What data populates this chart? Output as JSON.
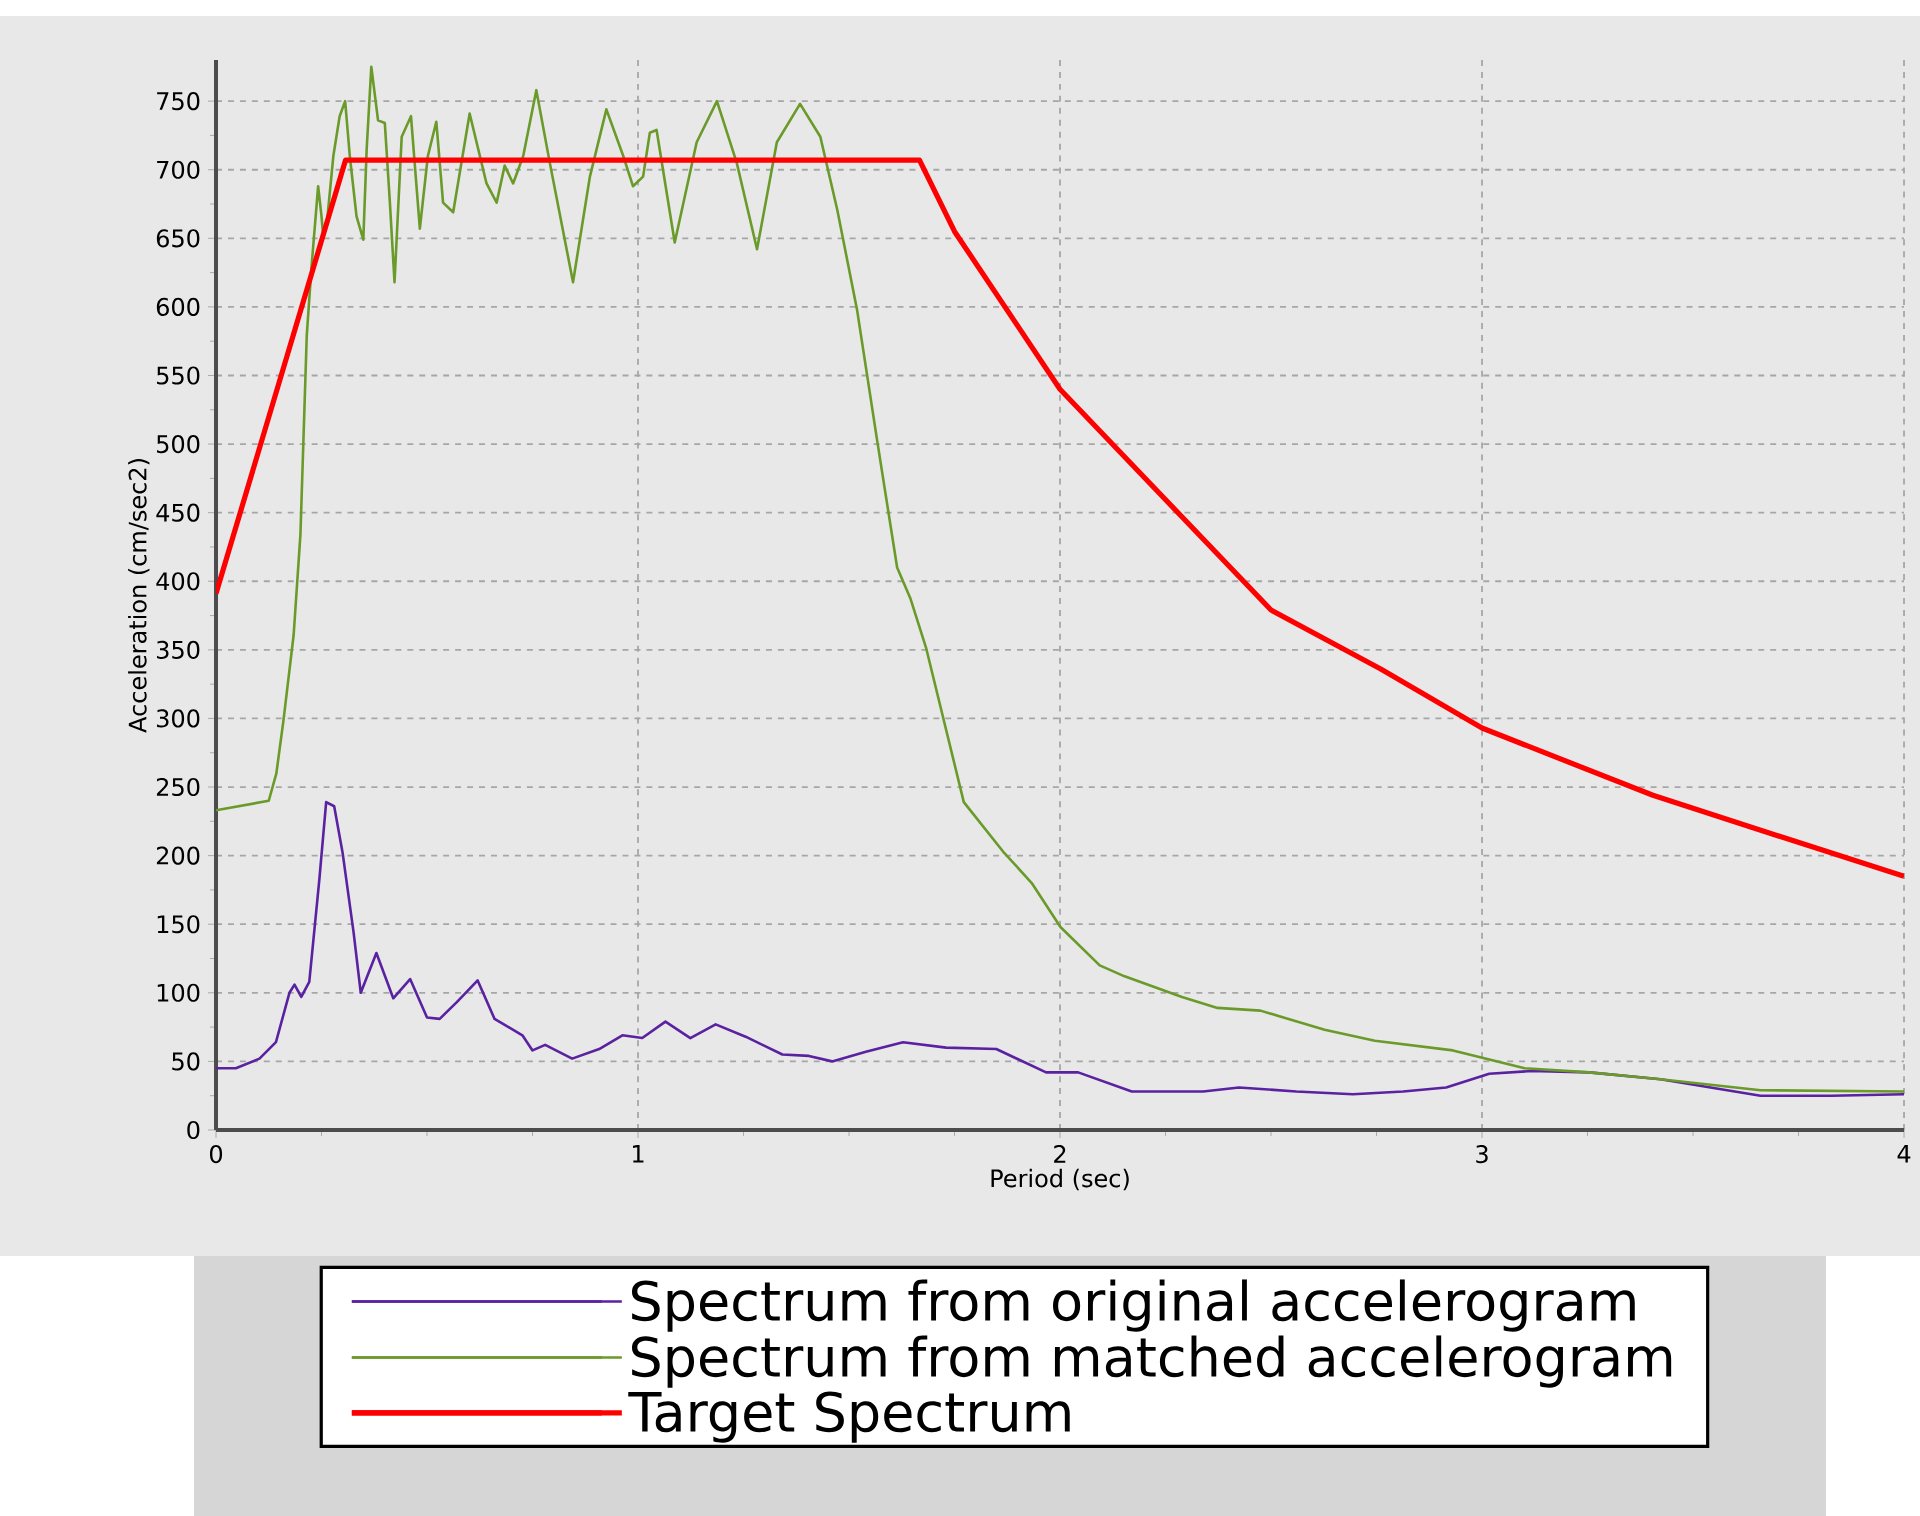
{
  "chart_data": {
    "type": "line",
    "xlabel": "Period (sec)",
    "ylabel": "Acceleration (cm/sec2)",
    "xlim": [
      0,
      4
    ],
    "ylim": [
      0,
      780
    ],
    "xticks": [
      0,
      1,
      2,
      3,
      4
    ],
    "yticks": [
      0,
      50,
      100,
      150,
      200,
      250,
      300,
      350,
      400,
      450,
      500,
      550,
      600,
      650,
      700,
      750
    ],
    "grid": true,
    "legend": "bottom",
    "marker": "none",
    "line_style": "solid",
    "series": [
      {
        "name": "Spectrum from original accelerogram",
        "color": "#5a22a0",
        "x": [
          0,
          0.047,
          0.103,
          0.142,
          0.174,
          0.186,
          0.202,
          0.221,
          0.245,
          0.261,
          0.28,
          0.3,
          0.326,
          0.343,
          0.38,
          0.42,
          0.46,
          0.5,
          0.53,
          0.57,
          0.62,
          0.66,
          0.726,
          0.75,
          0.78,
          0.844,
          0.908,
          0.963,
          1.01,
          1.065,
          1.124,
          1.184,
          1.255,
          1.342,
          1.405,
          1.46,
          1.54,
          1.628,
          1.73,
          1.849,
          1.967,
          2.043,
          2.17,
          2.339,
          2.424,
          2.56,
          2.694,
          2.813,
          2.915,
          3.017,
          3.118,
          3.254,
          3.423,
          3.66,
          3.829,
          4.0
        ],
        "values": [
          45,
          45,
          52,
          64,
          100,
          106,
          97,
          108,
          183,
          239,
          236,
          202,
          144,
          100,
          129,
          96,
          110,
          82,
          81,
          93,
          109,
          81,
          69,
          58,
          62,
          52,
          59,
          69,
          67,
          79,
          67,
          77,
          68,
          55,
          54,
          50,
          57,
          64,
          60,
          59,
          42,
          42,
          28,
          28,
          31,
          28,
          26,
          28,
          31,
          41,
          43,
          42,
          37,
          25,
          25,
          26
        ]
      },
      {
        "name": "Spectrum from matched accelerogram",
        "color": "#6a9a2a",
        "x": [
          0,
          0.125,
          0.143,
          0.16,
          0.184,
          0.2,
          0.215,
          0.226,
          0.242,
          0.25,
          0.254,
          0.262,
          0.278,
          0.293,
          0.306,
          0.317,
          0.333,
          0.349,
          0.357,
          0.368,
          0.384,
          0.4,
          0.412,
          0.423,
          0.44,
          0.462,
          0.483,
          0.502,
          0.522,
          0.538,
          0.562,
          0.601,
          0.641,
          0.665,
          0.684,
          0.704,
          0.728,
          0.759,
          0.791,
          0.846,
          0.886,
          0.925,
          0.965,
          0.988,
          1.012,
          1.028,
          1.044,
          1.087,
          1.139,
          1.187,
          1.234,
          1.282,
          1.329,
          1.384,
          1.432,
          1.472,
          1.519,
          1.567,
          1.614,
          1.646,
          1.683,
          1.772,
          1.865,
          1.933,
          2.001,
          2.094,
          2.153,
          2.289,
          2.373,
          2.475,
          2.627,
          2.746,
          2.931,
          3.101,
          3.254,
          3.423,
          3.66,
          4.0
        ],
        "values": [
          233,
          240,
          260,
          299,
          361,
          434,
          579,
          628,
          688,
          666,
          652,
          659,
          710,
          739,
          750,
          710,
          666,
          649,
          715,
          775,
          736,
          734,
          676,
          618,
          724,
          739,
          657,
          710,
          735,
          676,
          669,
          741,
          690,
          676,
          703,
          690,
          710,
          758,
          705,
          618,
          695,
          744,
          710,
          688,
          695,
          727,
          729,
          647,
          720,
          750,
          705,
          642,
          720,
          748,
          724,
          671,
          598,
          502,
          410,
          387,
          351,
          239,
          203,
          180,
          148,
          120,
          112,
          97,
          89,
          87,
          73,
          65,
          58,
          45,
          42,
          37,
          29,
          28
        ]
      },
      {
        "name": "Target Spectrum",
        "color": "#ff0000",
        "x": [
          0,
          0.307,
          1.667,
          1.75,
          2.0,
          2.5,
          2.76,
          3.0,
          3.405,
          3.675,
          4.0
        ],
        "values": [
          391,
          707,
          707,
          655,
          540,
          379,
          336,
          293,
          244,
          217,
          185
        ]
      }
    ]
  }
}
